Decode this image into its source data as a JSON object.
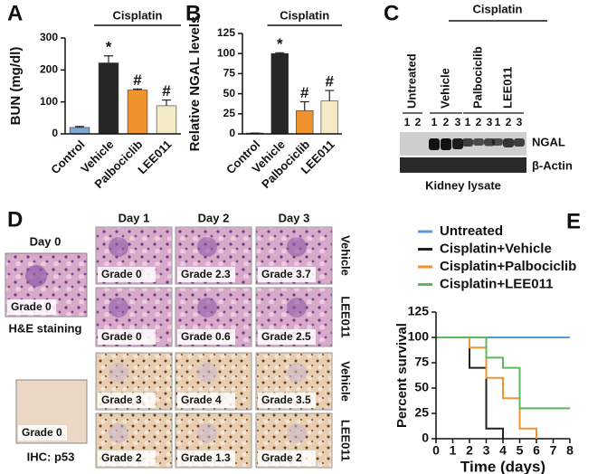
{
  "chart_data": [
    {
      "type": "bar",
      "panel": "A",
      "y_label": "BUN (mg/dl)",
      "annotation": "Cisplatin",
      "categories": [
        "Control",
        "Vehicle",
        "Palbociclib",
        "LEE011"
      ],
      "values": [
        20,
        222,
        137,
        88
      ],
      "errors": [
        3,
        22,
        3,
        18
      ],
      "markers": [
        null,
        "*",
        "#",
        "#"
      ],
      "colors": [
        "#7fa7d8",
        "#262626",
        "#f0922e",
        "#f3e9c4"
      ],
      "ylim": [
        0,
        300
      ],
      "yticks": [
        0,
        100,
        200,
        300
      ]
    },
    {
      "type": "bar",
      "panel": "B",
      "y_label": "Relative NGAL levels",
      "annotation": "Cisplatin",
      "categories": [
        "Control",
        "Vehicle",
        "Palbociclib",
        "LEE011"
      ],
      "values": [
        1,
        100,
        29,
        41
      ],
      "errors": [
        0,
        1,
        11,
        13
      ],
      "markers": [
        null,
        "*",
        "#",
        "#"
      ],
      "colors": [
        "#7fa7d8",
        "#262626",
        "#f0922e",
        "#f3e9c4"
      ],
      "ylim": [
        0,
        125
      ],
      "yticks": [
        0,
        25,
        50,
        75,
        100,
        125
      ]
    },
    {
      "type": "line",
      "step": true,
      "panel": "E",
      "x_label": "Time (days)",
      "y_label": "Percent survival",
      "xlim": [
        0,
        8
      ],
      "xticks": [
        0,
        1,
        2,
        3,
        4,
        5,
        6,
        7,
        8
      ],
      "ylim": [
        0,
        125
      ],
      "yticks": [
        0,
        25,
        50,
        75,
        100,
        125
      ],
      "series": [
        {
          "name": "Untreated",
          "color": "#5b9bd5",
          "x": [
            0,
            8
          ],
          "values": [
            100,
            100
          ]
        },
        {
          "name": "Cisplatin+Vehicle",
          "color": "#222222",
          "x": [
            0,
            2,
            3,
            4
          ],
          "values": [
            100,
            70,
            10,
            0
          ]
        },
        {
          "name": "Cisplatin+Palbociclib",
          "color": "#f0922e",
          "x": [
            0,
            2,
            3,
            4,
            5,
            6
          ],
          "values": [
            100,
            90,
            60,
            40,
            10,
            0
          ]
        },
        {
          "name": "Cisplatin+LEE011",
          "color": "#5cb85c",
          "x": [
            0,
            3,
            4,
            5,
            8
          ],
          "values": [
            100,
            80,
            70,
            30,
            30
          ]
        }
      ]
    }
  ],
  "western_blot": {
    "panel": "C",
    "annotation": "Cisplatin",
    "groups": [
      "Untreated",
      "Vehicle",
      "Palbociclib",
      "LEE011"
    ],
    "lanes": [
      [
        "1",
        "2"
      ],
      [
        "1",
        "2",
        "3"
      ],
      [
        "1",
        "2",
        "3"
      ],
      [
        "1",
        "2",
        "3"
      ]
    ],
    "bands": [
      "NGAL",
      "β-Actin"
    ],
    "caption": "Kidney lysate"
  },
  "histology": {
    "panel": "D",
    "day0": "Day 0",
    "days": [
      "Day 1",
      "Day 2",
      "Day 3"
    ],
    "he": {
      "grade": "Grade 0",
      "caption": "H&E staining"
    },
    "ihc": {
      "grade": "Grade 0",
      "caption": "IHC: p53"
    },
    "rows": [
      {
        "group": "Vehicle",
        "grades": [
          "Grade 0",
          "Grade 2.3",
          "Grade 3.7"
        ]
      },
      {
        "group": "LEE011",
        "grades": [
          "Grade 0",
          "Grade 0.6",
          "Grade 2.5"
        ]
      },
      {
        "group": "Vehicle",
        "grades": [
          "Grade 3",
          "Grade 4",
          "Grade 3.5"
        ]
      },
      {
        "group": "LEE011",
        "grades": [
          "Grade 2",
          "Grade 1.3",
          "Grade 2"
        ]
      }
    ]
  }
}
